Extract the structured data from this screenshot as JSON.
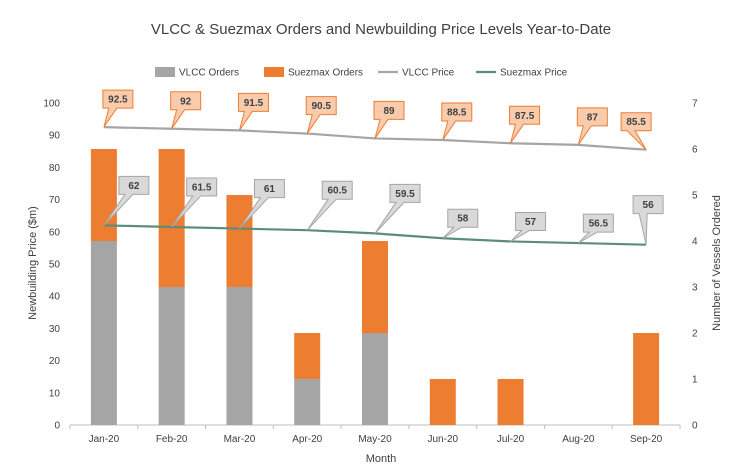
{
  "chart_data": {
    "type": "bar",
    "title": "VLCC & Suezmax Orders and Newbuilding Price Levels Year-to-Date",
    "xlabel": "Month",
    "ylabel_left": "Newbuilding Price ($m)",
    "ylabel_right": "Number of Vessels Ordered",
    "categories": [
      "Jan-20",
      "Feb-20",
      "Mar-20",
      "Apr-20",
      "May-20",
      "Jun-20",
      "Jul-20",
      "Aug-20",
      "Sep-20"
    ],
    "ylim_left": [
      0,
      100
    ],
    "yticks_left": [
      0,
      10,
      20,
      30,
      40,
      50,
      60,
      70,
      80,
      90,
      100
    ],
    "ylim_right": [
      0,
      7
    ],
    "yticks_right": [
      0,
      1,
      2,
      3,
      4,
      5,
      6,
      7
    ],
    "stacked": true,
    "grid": false,
    "legend_position": "top",
    "bar_series": [
      {
        "name": "VLCC Orders",
        "color": "#a5a5a5",
        "values": [
          4,
          3,
          3,
          1,
          2,
          0,
          0,
          0,
          0
        ]
      },
      {
        "name": "Suezmax Orders",
        "color": "#ed7d31",
        "values": [
          2,
          3,
          2,
          1,
          2,
          1,
          1,
          0,
          2
        ]
      }
    ],
    "line_series": [
      {
        "name": "VLCC Price",
        "color": "#a5a5a5",
        "values": [
          92.5,
          92,
          91.5,
          90.5,
          89,
          88.5,
          87.5,
          87,
          85.5
        ],
        "label_fill": "#f8cbad",
        "label_border": "#ed7d31"
      },
      {
        "name": "Suezmax Price",
        "color": "#5e8c7a",
        "values": [
          62,
          61.5,
          61,
          60.5,
          59.5,
          58,
          57,
          56.5,
          56
        ],
        "label_fill": "#d9d9d9",
        "label_border": "#a5a5a5"
      }
    ]
  }
}
